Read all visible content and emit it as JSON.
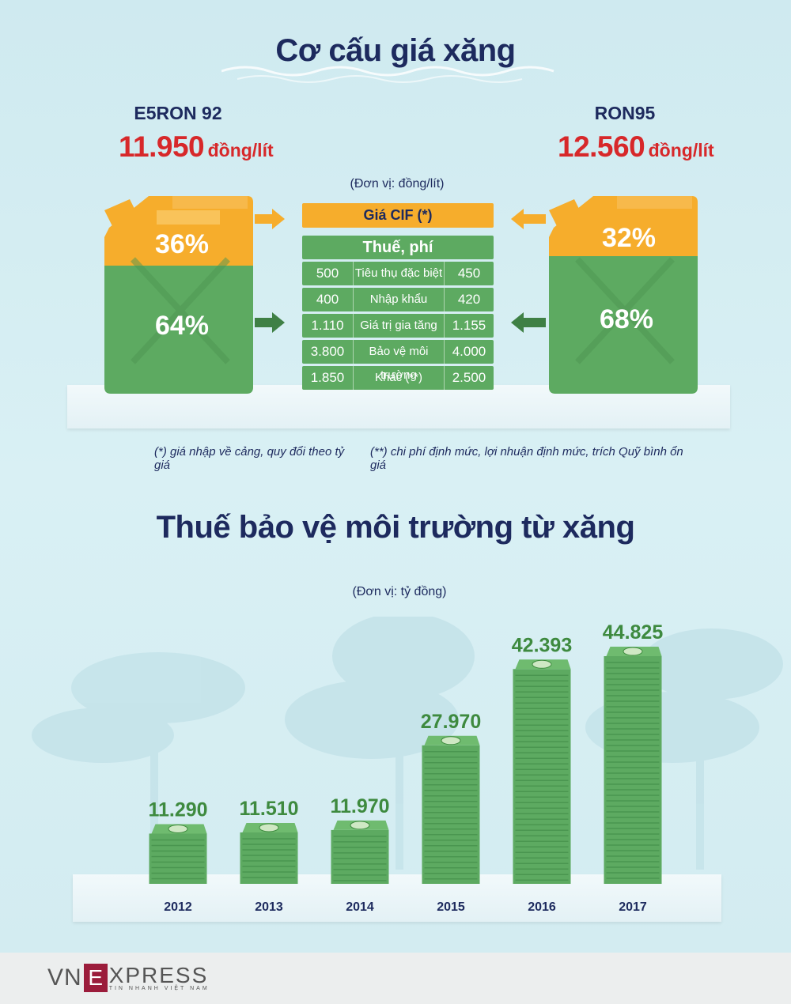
{
  "section1": {
    "title": "Cơ cấu giá xăng",
    "unit": "(Đơn vị: đồng/lít)",
    "left": {
      "name": "E5RON 92",
      "price": "11.950",
      "price_unit": "đồng/lít",
      "top_pct": "36%",
      "bottom_pct": "64%"
    },
    "right": {
      "name": "RON95",
      "price": "12.560",
      "price_unit": "đồng/lít",
      "top_pct": "32%",
      "bottom_pct": "68%"
    },
    "cif_label": "Giá CIF  (*)",
    "tax_header": "Thuế, phí",
    "tax_rows": [
      {
        "left": "500",
        "label": "Tiêu thụ đặc biệt",
        "right": "450"
      },
      {
        "left": "400",
        "label": "Nhập khẩu",
        "right": "420"
      },
      {
        "left": "1.110",
        "label": "Giá trị gia tăng",
        "right": "1.155"
      },
      {
        "left": "3.800",
        "label": "Bảo vệ môi trường",
        "right": "4.000"
      },
      {
        "left": "1.850",
        "label": "Khác  (**)",
        "right": "2.500"
      }
    ],
    "note1": "(*) giá nhập về cảng, quy đổi theo tỷ giá",
    "note2": "(**) chi phí định mức, lợi nhuận định mức, trích Quỹ bình ổn giá",
    "colors": {
      "cif": "#f6ad2c",
      "tax": "#5daa61",
      "price": "#d7282a"
    }
  },
  "section2": {
    "title": "Thuế bảo vệ môi trường từ xăng",
    "unit": "(Đơn vị: tỷ đồng)"
  },
  "chart_data": {
    "type": "bar",
    "categories": [
      "2012",
      "2013",
      "2014",
      "2015",
      "2016",
      "2017"
    ],
    "values": [
      11290,
      11510,
      11970,
      27970,
      42393,
      44825
    ],
    "value_labels": [
      "11.290",
      "11.510",
      "11.970",
      "27.970",
      "42.393",
      "44.825"
    ],
    "title": "Thuế bảo vệ môi trường từ xăng",
    "ylabel": "",
    "xlabel": "",
    "ylim": [
      0,
      44825
    ],
    "bar_color": "#5daa61",
    "grid": false
  },
  "footer": {
    "logo_vn": "VN",
    "logo_express": "XPRESS",
    "logo_tagline": "TIN NHANH VIỆT NAM"
  }
}
